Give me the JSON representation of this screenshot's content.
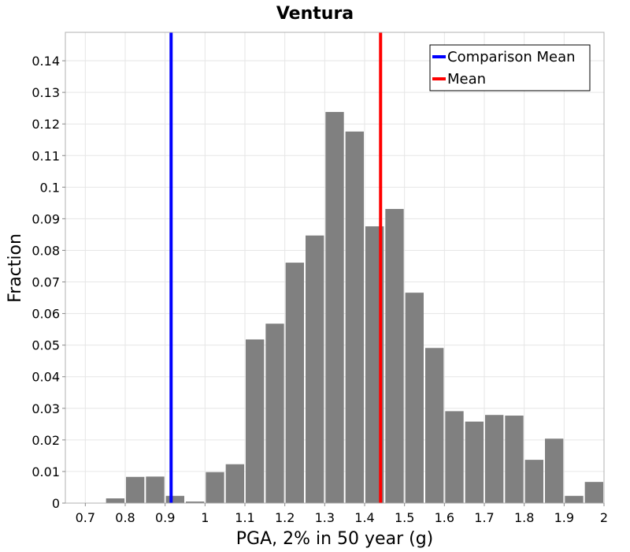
{
  "chart_data": {
    "type": "bar",
    "title": "Ventura",
    "xlabel": "PGA, 2% in 50 year (g)",
    "ylabel": "Fraction",
    "xlim": [
      0.65,
      2.0
    ],
    "ylim": [
      0,
      0.149
    ],
    "x_ticks": [
      "0.7",
      "0.8",
      "0.9",
      "1",
      "1.1",
      "1.2",
      "1.3",
      "1.4",
      "1.5",
      "1.6",
      "1.7",
      "1.8",
      "1.9",
      "2"
    ],
    "y_ticks": [
      "0",
      "0.01",
      "0.02",
      "0.03",
      "0.04",
      "0.05",
      "0.06",
      "0.07",
      "0.08",
      "0.09",
      "0.1",
      "0.11",
      "0.12",
      "0.13",
      "0.14"
    ],
    "grid": true,
    "bar_color": "#808080",
    "bin_width": 0.05,
    "bins": [
      {
        "x": 0.65,
        "value": 0.0
      },
      {
        "x": 0.7,
        "value": 0.0
      },
      {
        "x": 0.75,
        "value": 0.0015
      },
      {
        "x": 0.8,
        "value": 0.0083
      },
      {
        "x": 0.85,
        "value": 0.0084
      },
      {
        "x": 0.9,
        "value": 0.0023
      },
      {
        "x": 0.95,
        "value": 0.0005
      },
      {
        "x": 1.0,
        "value": 0.0098
      },
      {
        "x": 1.05,
        "value": 0.0123
      },
      {
        "x": 1.1,
        "value": 0.0518
      },
      {
        "x": 1.15,
        "value": 0.0568
      },
      {
        "x": 1.2,
        "value": 0.0761
      },
      {
        "x": 1.25,
        "value": 0.0847
      },
      {
        "x": 1.3,
        "value": 0.1238
      },
      {
        "x": 1.35,
        "value": 0.1176
      },
      {
        "x": 1.4,
        "value": 0.0876
      },
      {
        "x": 1.45,
        "value": 0.0931
      },
      {
        "x": 1.5,
        "value": 0.0666
      },
      {
        "x": 1.55,
        "value": 0.0491
      },
      {
        "x": 1.6,
        "value": 0.0291
      },
      {
        "x": 1.65,
        "value": 0.0258
      },
      {
        "x": 1.7,
        "value": 0.0279
      },
      {
        "x": 1.75,
        "value": 0.0277
      },
      {
        "x": 1.8,
        "value": 0.0137
      },
      {
        "x": 1.85,
        "value": 0.0204
      },
      {
        "x": 1.9,
        "value": 0.0023
      },
      {
        "x": 1.95,
        "value": 0.0067
      }
    ],
    "lines": [
      {
        "name": "Comparison Mean",
        "x": 0.915,
        "color": "#0000ff"
      },
      {
        "name": "Mean",
        "x": 1.44,
        "color": "#ff0000"
      }
    ],
    "legend": {
      "position": "top-right",
      "entries": [
        {
          "label": "Comparison Mean",
          "color": "#0000ff"
        },
        {
          "label": "Mean",
          "color": "#ff0000"
        }
      ]
    }
  }
}
